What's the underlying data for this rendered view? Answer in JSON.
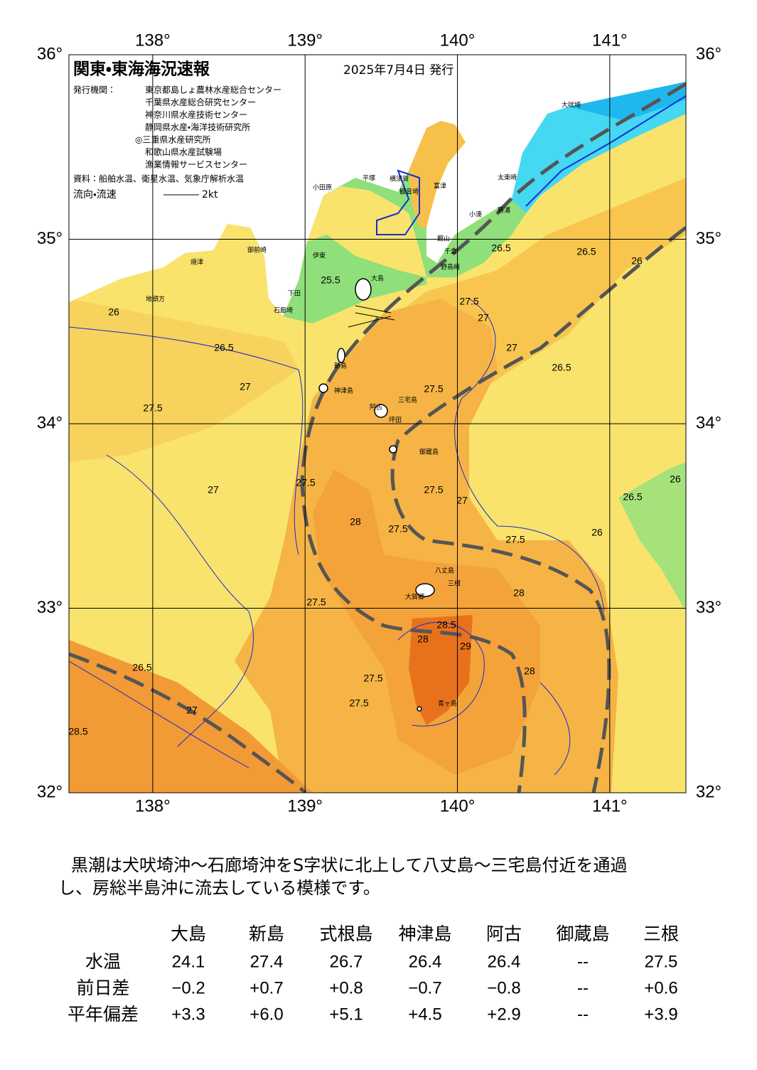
{
  "header": {
    "title": "関東・東海海況速報",
    "date": "2025年7月4日 発行",
    "issuer_label": "発行機関：",
    "issuers": [
      "東京都島しょ農林水産総合センター",
      "千葉県水産総合研究センター",
      "神奈川県水産技術センター",
      "静岡県水産・海洋技術研究所",
      "◎三重県水産研究所",
      "和歌山県水産試験場",
      "漁業情報サービスセンター"
    ],
    "source": "資料：船舶水温、衛星水温、気象庁解析水温",
    "legend_label": "流向・流速",
    "legend_scale": "2kt"
  },
  "map": {
    "lonlim": [
      137.45,
      141.5
    ],
    "latlim": [
      32,
      36
    ],
    "lon_ticks": [
      {
        "value": 138,
        "label": "138°"
      },
      {
        "value": 139,
        "label": "139°"
      },
      {
        "value": 140,
        "label": "140°"
      },
      {
        "value": 141,
        "label": "141°"
      }
    ],
    "lat_ticks": [
      {
        "value": 32,
        "label": "32°"
      },
      {
        "value": 33,
        "label": "33°"
      },
      {
        "value": 34,
        "label": "34°"
      },
      {
        "value": 35,
        "label": "35°"
      },
      {
        "value": 36,
        "label": "36°"
      }
    ],
    "places": [
      "大島",
      "新島",
      "神津島",
      "三宅島",
      "御蔵島",
      "八丈島",
      "青ヶ島",
      "坪田",
      "阿古",
      "三根",
      "大賀郷",
      "大吠埼",
      "太東崎",
      "勝浦",
      "小湊",
      "野島崎",
      "千倉",
      "館山",
      "富津",
      "平塚",
      "横須賀",
      "観音埼",
      "小田原",
      "伊東",
      "石廊埼",
      "下田",
      "御前崎",
      "焼津",
      "地頭方"
    ],
    "contour_labels": [
      "25.5",
      "26",
      "26.5",
      "27",
      "27.5",
      "27.5",
      "27",
      "26.5",
      "26",
      "26.5",
      "27",
      "26.5",
      "27.5",
      "27.5",
      "28",
      "27.5",
      "27.5",
      "27",
      "28",
      "27.5",
      "27.5",
      "28",
      "28.5",
      "29",
      "27.5",
      "27.5",
      "28",
      "27",
      "26.5",
      "28.5",
      "27",
      "26",
      "26.5",
      "26"
    ]
  },
  "summary": [
    "黒潮は犬吠埼沖～石廊埼沖をS字状に北上して八丈島～三宅島付近を通過",
    "し、房総半島沖に流去している模様です。"
  ],
  "table": {
    "columns": [
      "大島",
      "新島",
      "式根島",
      "神津島",
      "阿古",
      "御蔵島",
      "三根"
    ],
    "rows": [
      {
        "label": "水温",
        "cells": [
          "24.1",
          "27.4",
          "26.7",
          "26.4",
          "26.4",
          "--",
          "27.5"
        ]
      },
      {
        "label": "前日差",
        "cells": [
          "−0.2",
          "+0.7",
          "+0.8",
          "−0.7",
          "−0.8",
          "--",
          "+0.6"
        ]
      },
      {
        "label": "平年偏差",
        "cells": [
          "+3.3",
          "+6.0",
          "+5.1",
          "+4.5",
          "+2.9",
          "--",
          "+3.9"
        ]
      }
    ]
  }
}
